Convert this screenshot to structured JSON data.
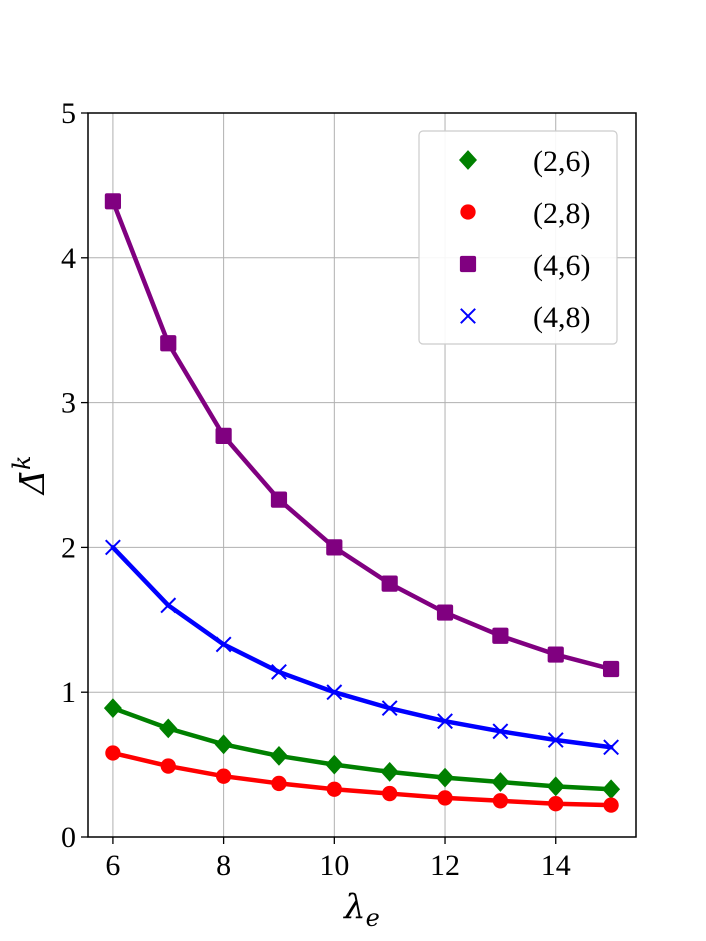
{
  "chart_data": {
    "type": "line",
    "title": "",
    "xlabel": "λ",
    "xlabel_sub": "e",
    "ylabel": "Δ̄",
    "ylabel_sup": "k",
    "x": [
      6,
      7,
      8,
      9,
      10,
      11,
      12,
      13,
      14,
      15
    ],
    "xlim": [
      5.55,
      15.45
    ],
    "ylim": [
      0,
      5
    ],
    "xticks": [
      6,
      8,
      10,
      12,
      14
    ],
    "yticks": [
      0,
      1,
      2,
      3,
      4,
      5
    ],
    "xtick_labels": [
      "6",
      "8",
      "10",
      "12",
      "14"
    ],
    "ytick_labels": [
      "0",
      "1",
      "2",
      "3",
      "4",
      "5"
    ],
    "grid": true,
    "legend_position": "top-right",
    "series": [
      {
        "name": "(2,6)",
        "color": "#008000",
        "marker": "diamond",
        "values": [
          0.89,
          0.75,
          0.64,
          0.56,
          0.5,
          0.45,
          0.41,
          0.38,
          0.35,
          0.33
        ]
      },
      {
        "name": "(2,8)",
        "color": "#ff0000",
        "marker": "circle",
        "values": [
          0.58,
          0.49,
          0.42,
          0.37,
          0.33,
          0.3,
          0.27,
          0.25,
          0.23,
          0.22
        ]
      },
      {
        "name": "(4,6)",
        "color": "#800080",
        "marker": "square",
        "values": [
          4.39,
          3.41,
          2.77,
          2.33,
          2.0,
          1.75,
          1.55,
          1.39,
          1.26,
          1.16
        ]
      },
      {
        "name": "(4,8)",
        "color": "#0000ff",
        "marker": "x",
        "values": [
          2.0,
          1.6,
          1.33,
          1.14,
          1.0,
          0.89,
          0.8,
          0.73,
          0.67,
          0.62
        ]
      }
    ]
  }
}
